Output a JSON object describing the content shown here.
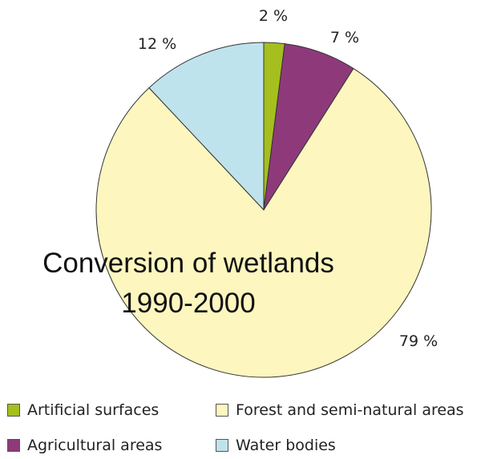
{
  "chart_data": {
    "type": "pie",
    "title": "Conversion of wetlands",
    "subtitle": "1990-2000",
    "slices": [
      {
        "label": "Artificial surfaces",
        "value": 2,
        "value_label": "2 %",
        "color": "#a5bf1e"
      },
      {
        "label": "Agricultural areas",
        "value": 7,
        "value_label": "7 %",
        "color": "#8e3a7a"
      },
      {
        "label": "Forest and semi-natural areas",
        "value": 79,
        "value_label": "79 %",
        "color": "#fdf6bf"
      },
      {
        "label": "Water bodies",
        "value": 12,
        "value_label": "12 %",
        "color": "#bfe3ec"
      }
    ],
    "legend_order": [
      0,
      2,
      1,
      3
    ],
    "legend_placement": "bottom"
  }
}
